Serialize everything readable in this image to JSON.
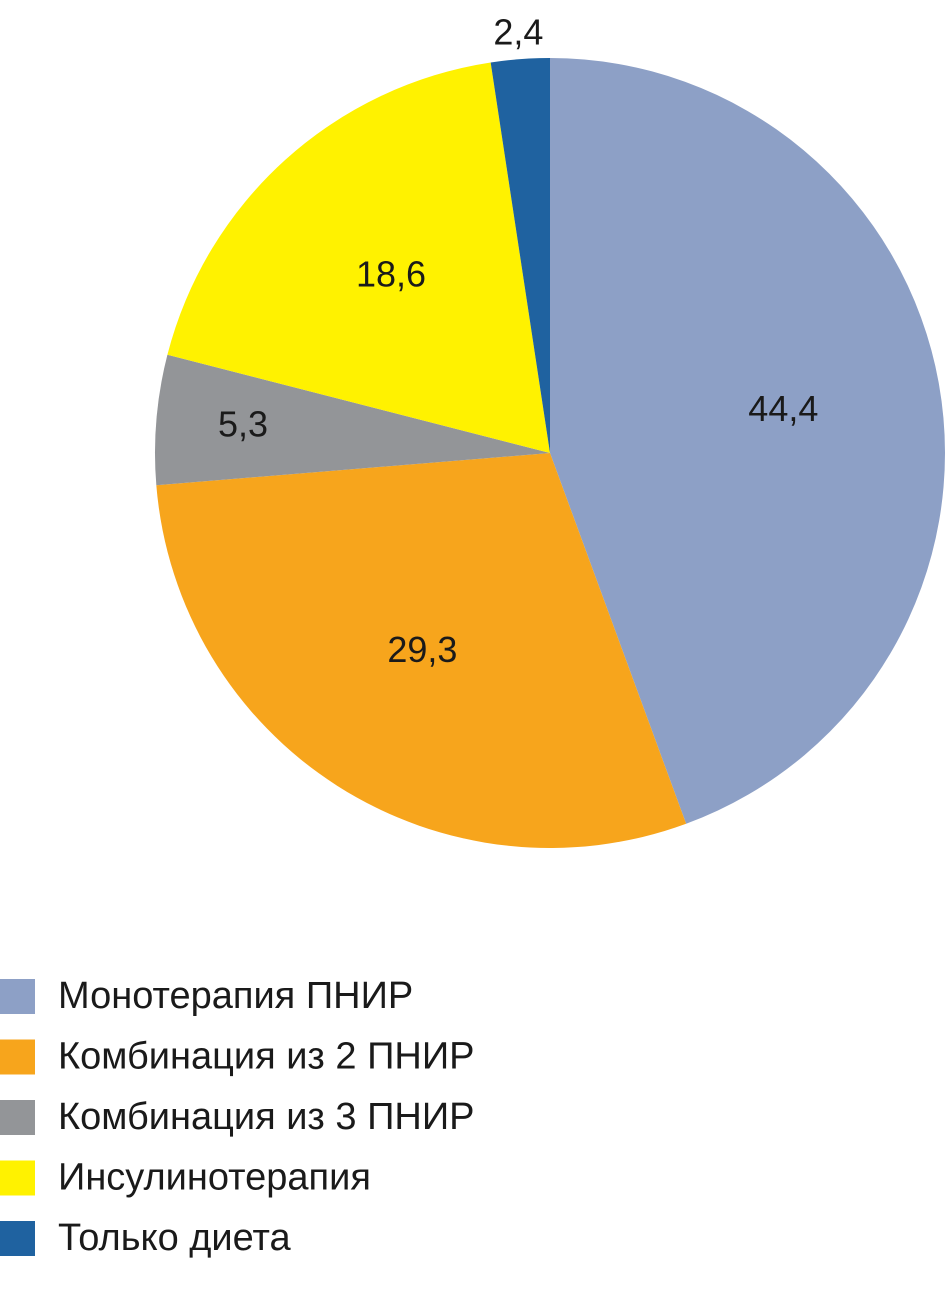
{
  "chart_data": {
    "type": "pie",
    "categories": [
      "Монотерапия ПНИР",
      "Комбинация из 2 ПНИР",
      "Комбинация из 3 ПНИР",
      "Инсулинотерапия",
      "Только диета"
    ],
    "values": [
      44.4,
      29.3,
      5.3,
      18.6,
      2.4
    ],
    "value_labels": [
      "44,4",
      "29,3",
      "5,3",
      "18,6",
      "2,4"
    ],
    "colors": [
      "#8da0c6",
      "#f7a51c",
      "#939598",
      "#fff200",
      "#1f62a0"
    ]
  }
}
